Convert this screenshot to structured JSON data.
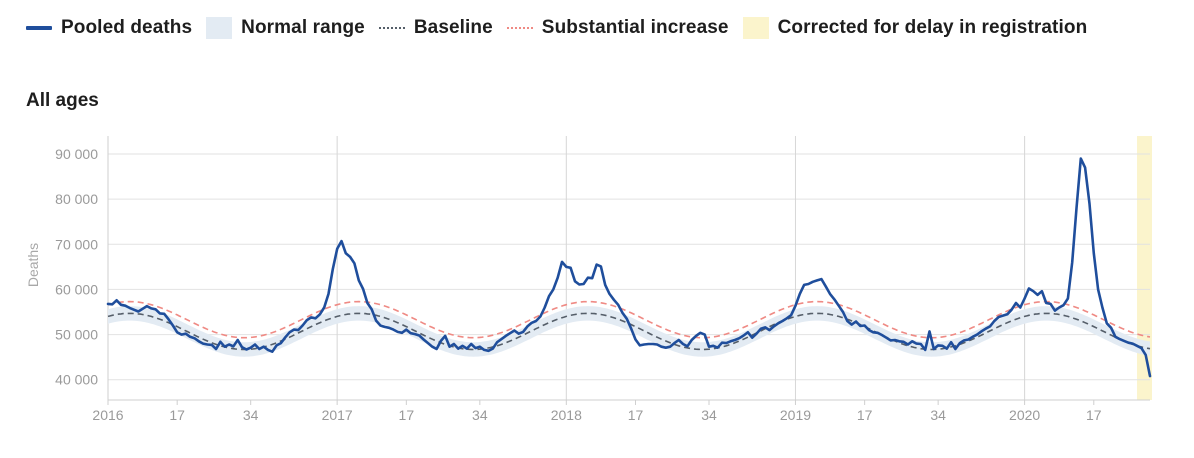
{
  "legend": {
    "pooled": "Pooled deaths",
    "normal": "Normal range",
    "baseline": "Baseline",
    "increase": "Substantial increase",
    "delay": "Corrected for delay in registration"
  },
  "section_title": "All ages",
  "colors": {
    "pooled": "#1f4e9c",
    "normal_range": "#e3ebf3",
    "baseline": "#555e69",
    "increase": "#ef8a84",
    "delay": "#fbf4cc",
    "grid": "#e2e2e2",
    "year_grid": "#d6d6d6"
  },
  "chart_data": {
    "type": "line",
    "ylabel": "Deaths",
    "ylim": [
      35500,
      94000
    ],
    "yticks": [
      40000,
      50000,
      60000,
      70000,
      80000,
      90000
    ],
    "ytick_labels": [
      "40 000",
      "50 000",
      "60 000",
      "70 000",
      "80 000",
      "90 000"
    ],
    "xlim": [
      0,
      241
    ],
    "xticks": [
      {
        "x": 0,
        "label": "2016"
      },
      {
        "x": 16,
        "label": "17"
      },
      {
        "x": 33,
        "label": "34"
      },
      {
        "x": 53,
        "label": "2017"
      },
      {
        "x": 69,
        "label": "17"
      },
      {
        "x": 86,
        "label": "34"
      },
      {
        "x": 106,
        "label": "2018"
      },
      {
        "x": 122,
        "label": "17"
      },
      {
        "x": 139,
        "label": "34"
      },
      {
        "x": 159,
        "label": "2019"
      },
      {
        "x": 175,
        "label": "17"
      },
      {
        "x": 192,
        "label": "34"
      },
      {
        "x": 212,
        "label": "2020"
      },
      {
        "x": 228,
        "label": "17"
      }
    ],
    "year_lines": [
      53,
      106,
      159,
      212
    ],
    "delay_region": [
      238,
      241
    ],
    "baseline_params": {
      "mean": 50700,
      "amplitude": 4000,
      "peak_week": 5,
      "period": 53
    },
    "normal_range_halfwidth": 1600,
    "increase_offset": 2600,
    "series": [
      {
        "name": "Pooled deaths",
        "points": [
          [
            0,
            56800
          ],
          [
            1,
            56700
          ],
          [
            2,
            57600
          ],
          [
            3,
            56600
          ],
          [
            4,
            56400
          ],
          [
            5,
            55900
          ],
          [
            6,
            55500
          ],
          [
            7,
            55100
          ],
          [
            8,
            55700
          ],
          [
            9,
            56300
          ],
          [
            10,
            55800
          ],
          [
            11,
            55600
          ],
          [
            12,
            54700
          ],
          [
            13,
            54600
          ],
          [
            14,
            53400
          ],
          [
            15,
            52000
          ],
          [
            16,
            50500
          ],
          [
            17,
            50000
          ],
          [
            18,
            50200
          ],
          [
            19,
            49500
          ],
          [
            20,
            49200
          ],
          [
            21,
            48500
          ],
          [
            22,
            48000
          ],
          [
            23,
            47800
          ],
          [
            24,
            47700
          ],
          [
            25,
            46800
          ],
          [
            26,
            48400
          ],
          [
            27,
            47300
          ],
          [
            28,
            47800
          ],
          [
            29,
            47400
          ],
          [
            30,
            48800
          ],
          [
            31,
            47200
          ],
          [
            32,
            46700
          ],
          [
            33,
            47100
          ],
          [
            34,
            47800
          ],
          [
            35,
            46800
          ],
          [
            36,
            47300
          ],
          [
            37,
            46600
          ],
          [
            38,
            46200
          ],
          [
            39,
            47600
          ],
          [
            40,
            48100
          ],
          [
            41,
            49400
          ],
          [
            42,
            50500
          ],
          [
            43,
            51100
          ],
          [
            44,
            51000
          ],
          [
            45,
            52000
          ],
          [
            46,
            53200
          ],
          [
            47,
            53800
          ],
          [
            48,
            53600
          ],
          [
            49,
            54500
          ],
          [
            50,
            56000
          ],
          [
            51,
            59000
          ],
          [
            52,
            64500
          ],
          [
            53,
            69000
          ],
          [
            54,
            70700
          ],
          [
            55,
            68000
          ],
          [
            56,
            67200
          ],
          [
            57,
            65800
          ],
          [
            58,
            62000
          ],
          [
            59,
            60100
          ],
          [
            60,
            57000
          ],
          [
            61,
            55600
          ],
          [
            62,
            53100
          ],
          [
            63,
            52000
          ],
          [
            64,
            51700
          ],
          [
            65,
            51500
          ],
          [
            66,
            51100
          ],
          [
            67,
            50600
          ],
          [
            68,
            50400
          ],
          [
            69,
            51100
          ],
          [
            70,
            50300
          ],
          [
            71,
            50100
          ],
          [
            72,
            49800
          ],
          [
            73,
            48900
          ],
          [
            74,
            48100
          ],
          [
            75,
            47300
          ],
          [
            76,
            46800
          ],
          [
            77,
            48600
          ],
          [
            78,
            49700
          ],
          [
            79,
            47300
          ],
          [
            80,
            47900
          ],
          [
            81,
            46900
          ],
          [
            82,
            47500
          ],
          [
            83,
            46900
          ],
          [
            84,
            47900
          ],
          [
            85,
            47000
          ],
          [
            86,
            47300
          ],
          [
            87,
            46600
          ],
          [
            88,
            46400
          ],
          [
            89,
            46900
          ],
          [
            90,
            48300
          ],
          [
            91,
            49000
          ],
          [
            92,
            49700
          ],
          [
            93,
            50300
          ],
          [
            94,
            50900
          ],
          [
            95,
            50200
          ],
          [
            96,
            50600
          ],
          [
            97,
            51800
          ],
          [
            98,
            52600
          ],
          [
            99,
            53000
          ],
          [
            100,
            54000
          ],
          [
            101,
            56000
          ],
          [
            102,
            58500
          ],
          [
            103,
            60000
          ],
          [
            104,
            62600
          ],
          [
            105,
            66100
          ],
          [
            106,
            65000
          ],
          [
            107,
            64800
          ],
          [
            108,
            61800
          ],
          [
            109,
            61100
          ],
          [
            110,
            61200
          ],
          [
            111,
            62600
          ],
          [
            112,
            62500
          ],
          [
            113,
            65500
          ],
          [
            114,
            65100
          ],
          [
            115,
            61000
          ],
          [
            116,
            59000
          ],
          [
            117,
            57700
          ],
          [
            118,
            56600
          ],
          [
            119,
            54800
          ],
          [
            120,
            53500
          ],
          [
            121,
            51300
          ],
          [
            122,
            48900
          ],
          [
            123,
            47600
          ],
          [
            124,
            47800
          ],
          [
            125,
            47900
          ],
          [
            126,
            47900
          ],
          [
            127,
            47800
          ],
          [
            128,
            47300
          ],
          [
            129,
            47100
          ],
          [
            130,
            47300
          ],
          [
            131,
            48100
          ],
          [
            132,
            48800
          ],
          [
            133,
            47900
          ],
          [
            134,
            47400
          ],
          [
            135,
            48800
          ],
          [
            136,
            49700
          ],
          [
            137,
            50400
          ],
          [
            138,
            50000
          ],
          [
            139,
            47300
          ],
          [
            140,
            47500
          ],
          [
            141,
            47100
          ],
          [
            142,
            48200
          ],
          [
            143,
            48100
          ],
          [
            144,
            48500
          ],
          [
            145,
            48800
          ],
          [
            146,
            49200
          ],
          [
            147,
            49800
          ],
          [
            148,
            50500
          ],
          [
            149,
            49300
          ],
          [
            150,
            50200
          ],
          [
            151,
            51300
          ],
          [
            152,
            51600
          ],
          [
            153,
            51000
          ],
          [
            154,
            51800
          ],
          [
            155,
            52500
          ],
          [
            156,
            53000
          ],
          [
            157,
            53600
          ],
          [
            158,
            54300
          ],
          [
            159,
            56400
          ],
          [
            160,
            59000
          ],
          [
            161,
            61000
          ],
          [
            162,
            61200
          ],
          [
            163,
            61700
          ],
          [
            164,
            62000
          ],
          [
            165,
            62300
          ],
          [
            166,
            60700
          ],
          [
            167,
            59000
          ],
          [
            168,
            57800
          ],
          [
            169,
            56400
          ],
          [
            170,
            55000
          ],
          [
            171,
            53000
          ],
          [
            172,
            52200
          ],
          [
            173,
            52900
          ],
          [
            174,
            51900
          ],
          [
            175,
            52000
          ],
          [
            176,
            51000
          ],
          [
            177,
            50500
          ],
          [
            178,
            50400
          ],
          [
            179,
            49900
          ],
          [
            180,
            49300
          ],
          [
            181,
            48700
          ],
          [
            182,
            48800
          ],
          [
            183,
            48500
          ],
          [
            184,
            48400
          ],
          [
            185,
            47800
          ],
          [
            186,
            48500
          ],
          [
            187,
            48000
          ],
          [
            188,
            47900
          ],
          [
            189,
            46600
          ],
          [
            190,
            50700
          ],
          [
            191,
            46800
          ],
          [
            192,
            47600
          ],
          [
            193,
            47500
          ],
          [
            194,
            46900
          ],
          [
            195,
            48300
          ],
          [
            196,
            46800
          ],
          [
            197,
            48100
          ],
          [
            198,
            48700
          ],
          [
            199,
            48900
          ],
          [
            200,
            49500
          ],
          [
            201,
            50000
          ],
          [
            202,
            50700
          ],
          [
            203,
            51300
          ],
          [
            204,
            51800
          ],
          [
            205,
            53000
          ],
          [
            206,
            53900
          ],
          [
            207,
            54200
          ],
          [
            208,
            54500
          ],
          [
            209,
            55500
          ],
          [
            210,
            57000
          ],
          [
            211,
            56000
          ],
          [
            212,
            58000
          ],
          [
            213,
            60200
          ],
          [
            214,
            59600
          ],
          [
            215,
            58800
          ],
          [
            216,
            59600
          ],
          [
            217,
            57000
          ],
          [
            218,
            56800
          ],
          [
            219,
            55300
          ],
          [
            220,
            56000
          ],
          [
            221,
            56500
          ],
          [
            222,
            58000
          ],
          [
            223,
            66000
          ],
          [
            224,
            78000
          ],
          [
            225,
            89000
          ],
          [
            226,
            87000
          ],
          [
            227,
            79000
          ],
          [
            228,
            68000
          ],
          [
            229,
            60000
          ],
          [
            230,
            56000
          ],
          [
            231,
            52500
          ],
          [
            232,
            51500
          ],
          [
            233,
            49500
          ],
          [
            234,
            49000
          ],
          [
            235,
            48600
          ],
          [
            236,
            48200
          ],
          [
            237,
            48000
          ],
          [
            238,
            47500
          ],
          [
            239,
            47000
          ],
          [
            240,
            45500
          ],
          [
            241,
            40800
          ]
        ]
      }
    ]
  }
}
